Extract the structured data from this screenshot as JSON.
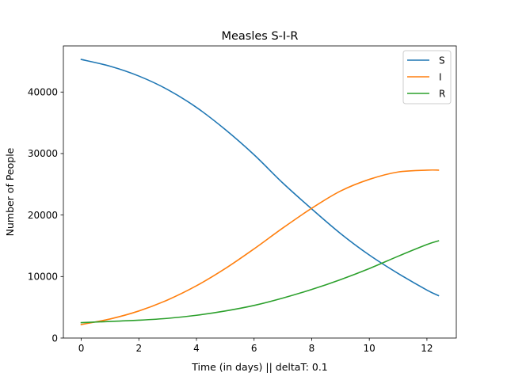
{
  "chart_data": {
    "type": "line",
    "title": "Measles S-I-R",
    "xlabel": "Time (in days) || deltaT: 0.1",
    "ylabel": "Number of People",
    "xlim": [
      -0.62,
      13.02
    ],
    "ylim": [
      0,
      47500
    ],
    "xticks": [
      0,
      2,
      4,
      6,
      8,
      10,
      12
    ],
    "yticks": [
      0,
      10000,
      20000,
      30000,
      40000
    ],
    "grid": false,
    "legend_position": "top-right",
    "x": [
      0,
      1,
      2,
      3,
      4,
      5,
      6,
      7,
      8,
      9,
      10,
      11,
      12,
      12.4
    ],
    "series": [
      {
        "name": "S",
        "color": "#1f77b4",
        "values": [
          45300,
          44200,
          42600,
          40400,
          37500,
          33900,
          29800,
          25200,
          21000,
          17000,
          13500,
          10500,
          7800,
          6900
        ]
      },
      {
        "name": "I",
        "color": "#ff7f0e",
        "values": [
          2200,
          3100,
          4400,
          6200,
          8500,
          11300,
          14500,
          17900,
          21100,
          23900,
          25800,
          27000,
          27300,
          27300
        ]
      },
      {
        "name": "R",
        "color": "#2ca02c",
        "values": [
          2500,
          2700,
          2900,
          3200,
          3700,
          4400,
          5300,
          6500,
          7900,
          9500,
          11300,
          13300,
          15200,
          15800
        ]
      }
    ]
  }
}
